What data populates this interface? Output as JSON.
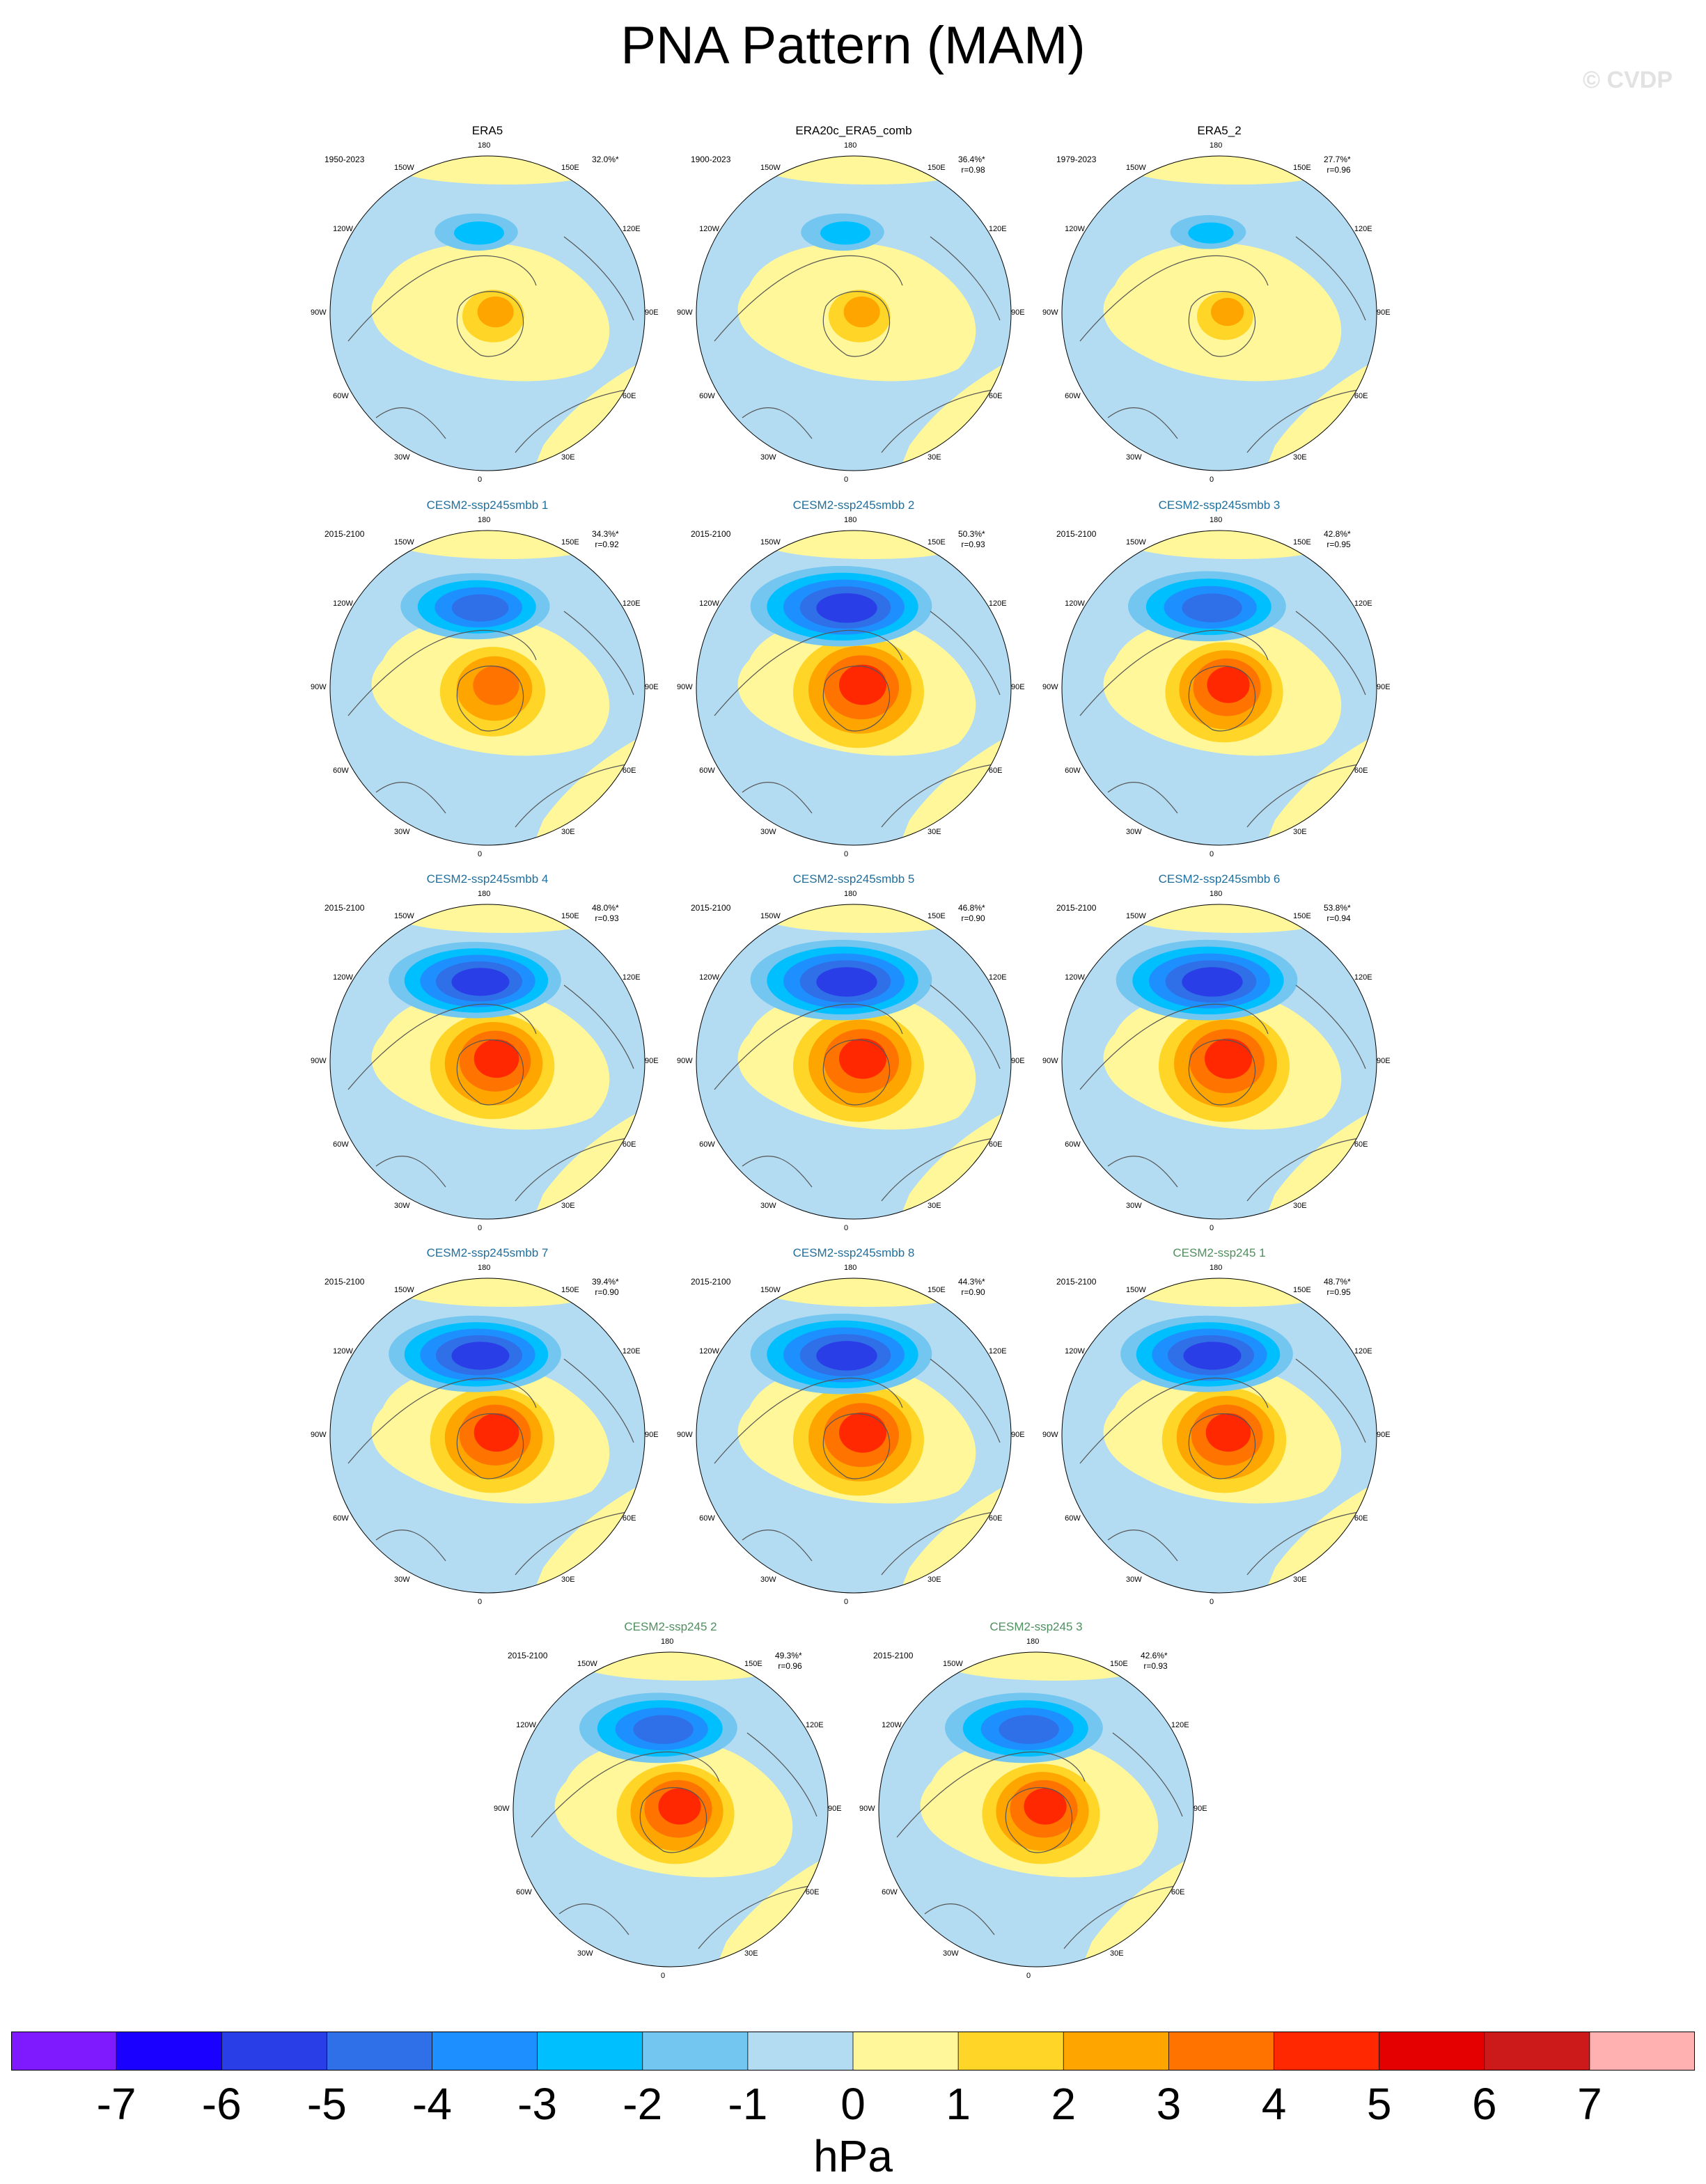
{
  "title": "PNA Pattern (MAM)",
  "watermark": "© CVDP",
  "lon_labels": {
    "n": "180",
    "nne": "150E",
    "ene": "120E",
    "e": "90E",
    "ese": "60E",
    "sse": "30E",
    "s": "0",
    "ssw": "30W",
    "wsw": "60W",
    "w": "90W",
    "wnw": "120W",
    "nnw": "150W"
  },
  "panels": [
    {
      "title": "ERA5",
      "title_color": "#000000",
      "years": "1950-2023",
      "pct": "32.0%*",
      "r": "",
      "amp": 0.55
    },
    {
      "title": "ERA20c_ERA5_comb",
      "title_color": "#000000",
      "years": "1900-2023",
      "pct": "36.4%*",
      "r": "r=0.98",
      "amp": 0.55
    },
    {
      "title": "ERA5_2",
      "title_color": "#000000",
      "years": "1979-2023",
      "pct": "27.7%*",
      "r": "r=0.96",
      "amp": 0.5
    },
    {
      "title": "CESM2-ssp245smbb 1",
      "title_color": "#1f6f9e",
      "years": "2015-2100",
      "pct": "34.3%*",
      "r": "r=0.92",
      "amp": 0.85
    },
    {
      "title": "CESM2-ssp245smbb 2",
      "title_color": "#1f6f9e",
      "years": "2015-2100",
      "pct": "50.3%*",
      "r": "r=0.93",
      "amp": 1.0
    },
    {
      "title": "CESM2-ssp245smbb 3",
      "title_color": "#1f6f9e",
      "years": "2015-2100",
      "pct": "42.8%*",
      "r": "r=0.95",
      "amp": 0.9
    },
    {
      "title": "CESM2-ssp245smbb 4",
      "title_color": "#1f6f9e",
      "years": "2015-2100",
      "pct": "48.0%*",
      "r": "r=0.93",
      "amp": 0.95
    },
    {
      "title": "CESM2-ssp245smbb 5",
      "title_color": "#1f6f9e",
      "years": "2015-2100",
      "pct": "46.8%*",
      "r": "r=0.90",
      "amp": 1.0
    },
    {
      "title": "CESM2-ssp245smbb 6",
      "title_color": "#1f6f9e",
      "years": "2015-2100",
      "pct": "53.8%*",
      "r": "r=0.94",
      "amp": 1.0
    },
    {
      "title": "CESM2-ssp245smbb 7",
      "title_color": "#1f6f9e",
      "years": "2015-2100",
      "pct": "39.4%*",
      "r": "r=0.90",
      "amp": 0.95
    },
    {
      "title": "CESM2-ssp245smbb 8",
      "title_color": "#1f6f9e",
      "years": "2015-2100",
      "pct": "44.3%*",
      "r": "r=0.90",
      "amp": 1.0
    },
    {
      "title": "CESM2-ssp245 1",
      "title_color": "#4f8f5f",
      "years": "2015-2100",
      "pct": "48.7%*",
      "r": "r=0.95",
      "amp": 0.95
    },
    {
      "title": "CESM2-ssp245 2",
      "title_color": "#4f8f5f",
      "years": "2015-2100",
      "pct": "49.3%*",
      "r": "r=0.96",
      "amp": 0.9
    },
    {
      "title": "CESM2-ssp245 3",
      "title_color": "#4f8f5f",
      "years": "2015-2100",
      "pct": "42.6%*",
      "r": "r=0.93",
      "amp": 0.9
    }
  ],
  "colorbar": {
    "colors": [
      "#7f1aff",
      "#1a00ff",
      "#2a3ee8",
      "#2f6fe8",
      "#1e8fff",
      "#00bfff",
      "#72c6f0",
      "#b3dcf2",
      "#fff799",
      "#ffd627",
      "#ffa500",
      "#ff7300",
      "#ff2800",
      "#e40000",
      "#cc1a1a",
      "#ffb0b0"
    ],
    "labels": [
      "-7",
      "-6",
      "-5",
      "-4",
      "-3",
      "-2",
      "-1",
      "0",
      "1",
      "2",
      "3",
      "4",
      "5",
      "6",
      "7"
    ],
    "units": "hPa"
  }
}
